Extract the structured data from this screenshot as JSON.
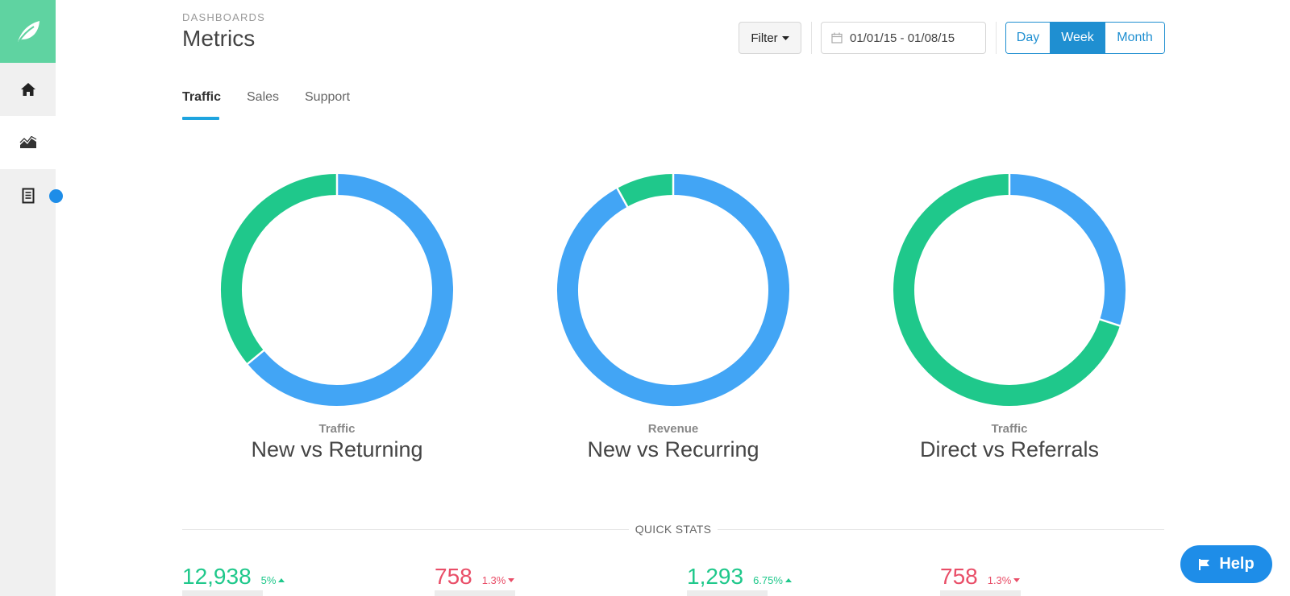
{
  "header": {
    "eyebrow": "DASHBOARDS",
    "title": "Metrics",
    "filter_label": "Filter",
    "date_range": "01/01/15 - 01/08/15",
    "range_options": [
      "Day",
      "Week",
      "Month"
    ],
    "range_selected": "Week"
  },
  "tabs": [
    {
      "label": "Traffic",
      "active": true
    },
    {
      "label": "Sales",
      "active": false
    },
    {
      "label": "Support",
      "active": false
    }
  ],
  "chart_data": [
    {
      "type": "pie",
      "title": "New vs Returning",
      "subtitle": "Traffic",
      "values": [
        64,
        36
      ],
      "colors": [
        "#42a5f5",
        "#1fc88b"
      ]
    },
    {
      "type": "pie",
      "title": "New vs Recurring",
      "subtitle": "Revenue",
      "values": [
        92,
        8
      ],
      "colors": [
        "#42a5f5",
        "#1fc88b"
      ]
    },
    {
      "type": "pie",
      "title": "Direct vs Referrals",
      "subtitle": "Traffic",
      "values": [
        30,
        70
      ],
      "colors": [
        "#42a5f5",
        "#1fc88b"
      ]
    }
  ],
  "quick_stats": {
    "title": "QUICK STATS",
    "items": [
      {
        "value": "12,938",
        "change": "5%",
        "direction": "up"
      },
      {
        "value": "758",
        "change": "1.3%",
        "direction": "down"
      },
      {
        "value": "1,293",
        "change": "6.75%",
        "direction": "up"
      },
      {
        "value": "758",
        "change": "1.3%",
        "direction": "down"
      }
    ]
  },
  "help": {
    "label": "Help"
  },
  "colors": {
    "accent": "#1f8fd1",
    "brand": "#5fd3a1",
    "blue": "#42a5f5",
    "green": "#1fc88b",
    "red": "#e94e68"
  }
}
